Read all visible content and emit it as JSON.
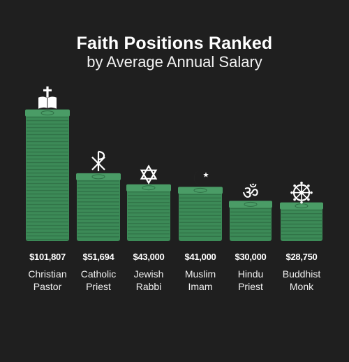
{
  "title": "Faith Positions Ranked",
  "subtitle": "by Average Annual Salary",
  "chart_data": {
    "type": "bar",
    "title": "Faith Positions Ranked",
    "subtitle": "by Average Annual Salary",
    "categories": [
      "Christian Pastor",
      "Catholic Priest",
      "Jewish Rabbi",
      "Muslim Imam",
      "Hindu Priest",
      "Buddhist Monk"
    ],
    "category_lines": [
      [
        "Christian",
        "Pastor"
      ],
      [
        "Catholic",
        "Priest"
      ],
      [
        "Jewish",
        "Rabbi"
      ],
      [
        "Muslim",
        "Imam"
      ],
      [
        "Hindu",
        "Priest"
      ],
      [
        "Buddhist",
        "Monk"
      ]
    ],
    "values": [
      101807,
      51694,
      43000,
      41000,
      30000,
      28750
    ],
    "value_labels": [
      "$101,807",
      "$51,694",
      "$43,000",
      "$41,000",
      "$30,000",
      "$28,750"
    ],
    "icons": [
      "cross-bible-icon",
      "chi-rho-icon",
      "star-of-david-icon",
      "crescent-star-icon",
      "om-icon",
      "dharma-wheel-icon"
    ],
    "ylim": [
      0,
      120000
    ],
    "grid": false,
    "legend": "none",
    "colors": {
      "bar_face": "#3c8a57",
      "bar_top": "#4a9c66",
      "bar_band": "#2f6f45",
      "background": "#1f1f1f"
    }
  }
}
